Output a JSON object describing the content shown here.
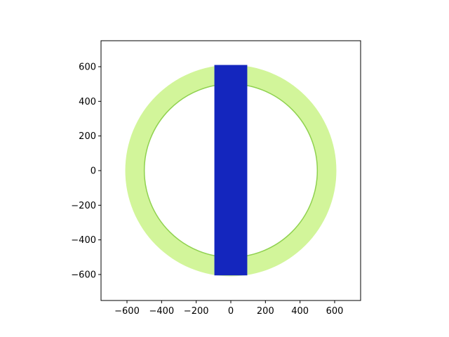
{
  "chart_data": {
    "type": "heatmap",
    "title": "",
    "xlabel": "",
    "ylabel": "",
    "xlim": [
      -750,
      750
    ],
    "ylim": [
      -750,
      750
    ],
    "aspect": "equal",
    "grid": false,
    "legend": "none",
    "x_ticks": [
      -600,
      -400,
      -200,
      0,
      200,
      400,
      600
    ],
    "y_ticks": [
      -600,
      -400,
      -200,
      0,
      200,
      400,
      600
    ],
    "x_tick_labels": [
      "−600",
      "−400",
      "−200",
      "0",
      "200",
      "400",
      "600"
    ],
    "y_tick_labels": [
      "−600",
      "−400",
      "−200",
      "0",
      "200",
      "400",
      "600"
    ],
    "shapes": [
      {
        "kind": "annulus",
        "center": [
          0,
          0
        ],
        "inner_radius": 500,
        "outer_radius": 610,
        "fill_color": "#d2f59a",
        "edge_color": "#8fd14f"
      },
      {
        "kind": "rectangle",
        "x_range": [
          -95,
          95
        ],
        "y_range": [
          -605,
          610
        ],
        "fill_color": "#1426be"
      }
    ]
  }
}
